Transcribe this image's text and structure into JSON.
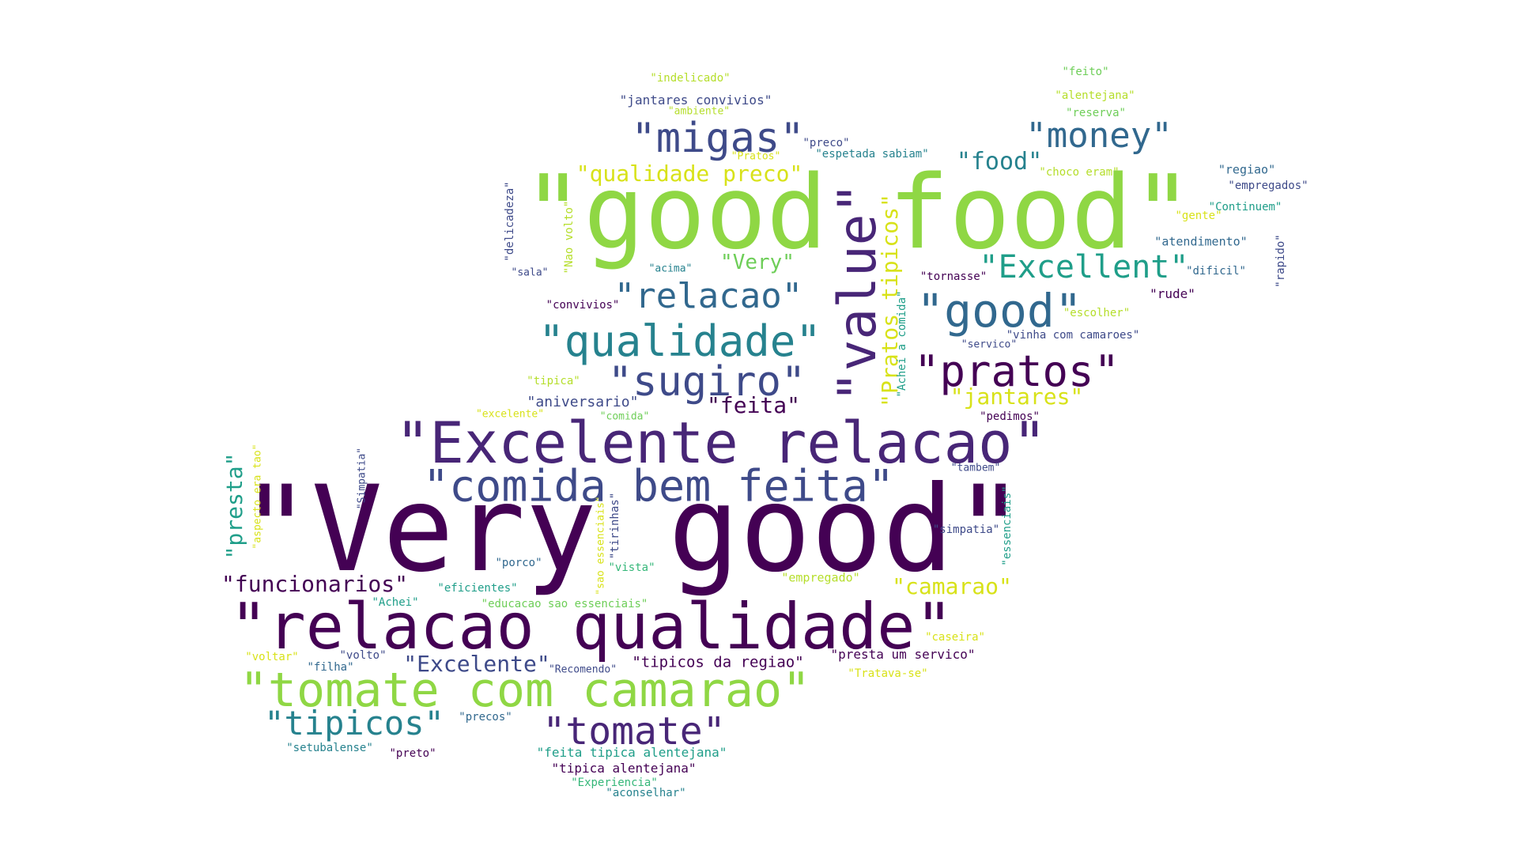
{
  "palette": {
    "dark_purple": "#440154",
    "purple": "#482677",
    "indigo": "#3e4a89",
    "blue": "#31688e",
    "teal": "#26828e",
    "green_teal": "#1f9e89",
    "green": "#35b779",
    "light_green": "#6ece58",
    "lime": "#8fd744",
    "yellow_green": "#b5de2b",
    "yellow": "#d8e219"
  },
  "words": [
    {
      "text": "\"Very good\"",
      "color": "#440154"
    },
    {
      "text": "\"good food\"",
      "color": "#8fd744"
    },
    {
      "text": "\"relacao qualidade\"",
      "color": "#440154"
    },
    {
      "text": "\"Excelente relacao\"",
      "color": "#482677"
    },
    {
      "text": "\"tomate com camarao\"",
      "color": "#8fd744"
    },
    {
      "text": "\"value\"",
      "color": "#482677"
    },
    {
      "text": "\"comida bem feita\"",
      "color": "#3e4a89"
    },
    {
      "text": "\"migas\"",
      "color": "#3e4a89"
    },
    {
      "text": "\"money\"",
      "color": "#31688e"
    },
    {
      "text": "\"qualidade\"",
      "color": "#26828e"
    },
    {
      "text": "\"sugiro\"",
      "color": "#3e4a89"
    },
    {
      "text": "\"pratos\"",
      "color": "#440154"
    },
    {
      "text": "\"good\"",
      "color": "#31688e"
    },
    {
      "text": "\"relacao\"",
      "color": "#31688e"
    },
    {
      "text": "\"Excellent\"",
      "color": "#1f9e89"
    },
    {
      "text": "\"tomate\"",
      "color": "#482677"
    },
    {
      "text": "\"tipicos\"",
      "color": "#26828e"
    },
    {
      "text": "\"Pratos tipicos\"",
      "color": "#d8e219"
    },
    {
      "text": "\"qualidade preco\"",
      "color": "#d8e219"
    },
    {
      "text": "\"food\"",
      "color": "#26828e"
    },
    {
      "text": "\"funcionarios\"",
      "color": "#440154"
    },
    {
      "text": "\"presta\"",
      "color": "#1f9e89"
    },
    {
      "text": "\"Excelente\"",
      "color": "#3e4a89"
    },
    {
      "text": "\"camarao\"",
      "color": "#d8e219"
    },
    {
      "text": "\"jantares\"",
      "color": "#d8e219"
    },
    {
      "text": "\"feita\"",
      "color": "#440154"
    },
    {
      "text": "\"Very\"",
      "color": "#6ece58"
    },
    {
      "text": "\"aniversario\"",
      "color": "#3e4a89"
    },
    {
      "text": "\"tipicos da regiao\"",
      "color": "#440154"
    },
    {
      "text": "\"feita tipica alentejana\"",
      "color": "#1f9e89"
    },
    {
      "text": "\"tipica alentejana\"",
      "color": "#440154"
    },
    {
      "text": "\"presta um servico\"",
      "color": "#440154"
    },
    {
      "text": "\"jantares convivios\"",
      "color": "#3e4a89"
    },
    {
      "text": "\"indelicado\"",
      "color": "#b5de2b"
    },
    {
      "text": "\"ambiente\"",
      "color": "#b5de2b"
    },
    {
      "text": "\"preco\"",
      "color": "#3e4a89"
    },
    {
      "text": "\"Pratos\"",
      "color": "#d8e219"
    },
    {
      "text": "\"espetada sabiam\"",
      "color": "#26828e"
    },
    {
      "text": "\"feito\"",
      "color": "#6ece58"
    },
    {
      "text": "\"alentejana\"",
      "color": "#b5de2b"
    },
    {
      "text": "\"reserva\"",
      "color": "#6ece58"
    },
    {
      "text": "\"regiao\"",
      "color": "#31688e"
    },
    {
      "text": "\"empregados\"",
      "color": "#3e4a89"
    },
    {
      "text": "\"choco eram\"",
      "color": "#b5de2b"
    },
    {
      "text": "\"Continuem\"",
      "color": "#1f9e89"
    },
    {
      "text": "\"gente\"",
      "color": "#d8e219"
    },
    {
      "text": "\"atendimento\"",
      "color": "#31688e"
    },
    {
      "text": "\"dificil\"",
      "color": "#31688e"
    },
    {
      "text": "\"rapido\"",
      "color": "#3e4a89"
    },
    {
      "text": "\"rude\"",
      "color": "#440154"
    },
    {
      "text": "\"tornasse\"",
      "color": "#440154"
    },
    {
      "text": "\"escolher\"",
      "color": "#b5de2b"
    },
    {
      "text": "\"vinha com camaroes\"",
      "color": "#3e4a89"
    },
    {
      "text": "\"servico\"",
      "color": "#3e4a89"
    },
    {
      "text": "\"Achei a comida\"",
      "color": "#1f9e89"
    },
    {
      "text": "\"delicadeza\"",
      "color": "#3e4a89"
    },
    {
      "text": "\"Nao volto\"",
      "color": "#b5de2b"
    },
    {
      "text": "\"sala\"",
      "color": "#3e4a89"
    },
    {
      "text": "\"acima\"",
      "color": "#26828e"
    },
    {
      "text": "\"convivios\"",
      "color": "#440154"
    },
    {
      "text": "\"tipica\"",
      "color": "#b5de2b"
    },
    {
      "text": "\"excelente\"",
      "color": "#d8e219"
    },
    {
      "text": "\"comida\"",
      "color": "#6ece58"
    },
    {
      "text": "\"pedimos\"",
      "color": "#440154"
    },
    {
      "text": "\"tambem\"",
      "color": "#3e4a89"
    },
    {
      "text": "\"simpatia\"",
      "color": "#3e4a89"
    },
    {
      "text": "\"essenciais\"",
      "color": "#1f9e89"
    },
    {
      "text": "\"Simpatia\"",
      "color": "#3e4a89"
    },
    {
      "text": "\"aspecto era tao\"",
      "color": "#d8e219"
    },
    {
      "text": "\"sao essenciais\"",
      "color": "#d8e219"
    },
    {
      "text": "\"tirinhas\"",
      "color": "#3e4a89"
    },
    {
      "text": "\"vista\"",
      "color": "#35b779"
    },
    {
      "text": "\"porco\"",
      "color": "#31688e"
    },
    {
      "text": "\"eficientes\"",
      "color": "#1f9e89"
    },
    {
      "text": "\"empregado\"",
      "color": "#b5de2b"
    },
    {
      "text": "\"Achei\"",
      "color": "#1f9e89"
    },
    {
      "text": "\"educacao sao essenciais\"",
      "color": "#6ece58"
    },
    {
      "text": "\"caseira\"",
      "color": "#d8e219"
    },
    {
      "text": "\"voltar\"",
      "color": "#d8e219"
    },
    {
      "text": "\"volto\"",
      "color": "#3e4a89"
    },
    {
      "text": "\"filha\"",
      "color": "#31688e"
    },
    {
      "text": "\"Recomendo\"",
      "color": "#3e4a89"
    },
    {
      "text": "\"Tratava-se\"",
      "color": "#d8e219"
    },
    {
      "text": "\"precos\"",
      "color": "#31688e"
    },
    {
      "text": "\"setubalense\"",
      "color": "#26828e"
    },
    {
      "text": "\"preto\"",
      "color": "#440154"
    },
    {
      "text": "\"Experiencia\"",
      "color": "#35b779"
    },
    {
      "text": "\"aconselhar\"",
      "color": "#26828e"
    }
  ]
}
